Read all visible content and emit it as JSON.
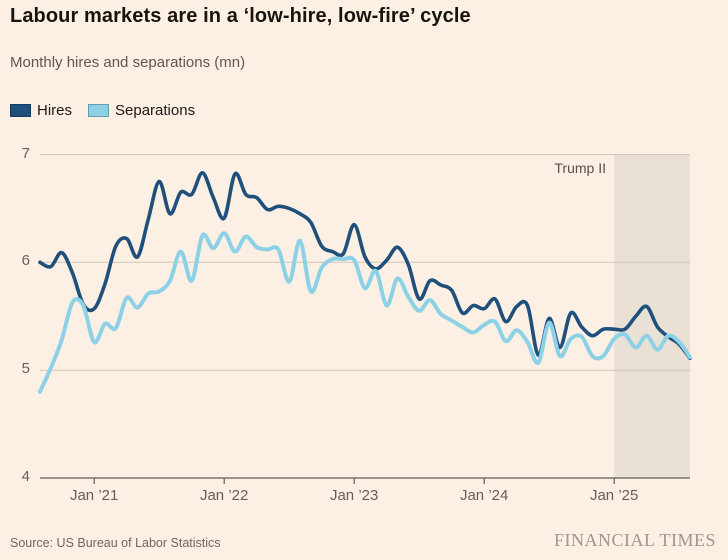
{
  "footer": {
    "source": "Source: US Bureau of Labor Statistics",
    "brand": "FINANCIAL TIMES"
  },
  "chart_data": {
    "type": "line",
    "title": "Labour markets are in a ‘low-hire, low-fire’ cycle",
    "subtitle": "Monthly hires and separations (mn)",
    "ylim": [
      4,
      7
    ],
    "yticks": [
      4,
      5,
      6,
      7
    ],
    "grid": "horizontal-only",
    "legend_position": "top-left",
    "x_tick_labels": [
      "Jan ’21",
      "Jan ’22",
      "Jan ’23",
      "Jan ’24",
      "Jan ’25"
    ],
    "x_tick_month_indices": [
      5,
      17,
      29,
      41,
      53
    ],
    "months": [
      "Aug ’20",
      "Sep ’20",
      "Oct ’20",
      "Nov ’20",
      "Dec ’20",
      "Jan ’21",
      "Feb ’21",
      "Mar ’21",
      "Apr ’21",
      "May ’21",
      "Jun ’21",
      "Jul ’21",
      "Aug ’21",
      "Sep ’21",
      "Oct ’21",
      "Nov ’21",
      "Dec ’21",
      "Jan ’22",
      "Feb ’22",
      "Mar ’22",
      "Apr ’22",
      "May ’22",
      "Jun ’22",
      "Jul ’22",
      "Aug ’22",
      "Sep ’22",
      "Oct ’22",
      "Nov ’22",
      "Dec ’22",
      "Jan ’23",
      "Feb ’23",
      "Mar ’23",
      "Apr ’23",
      "May ’23",
      "Jun ’23",
      "Jul ’23",
      "Aug ’23",
      "Sep ’23",
      "Oct ’23",
      "Nov ’23",
      "Dec ’23",
      "Jan ’24",
      "Feb ’24",
      "Mar ’24",
      "Apr ’24",
      "May ’24",
      "Jun ’24",
      "Jul ’24",
      "Aug ’24",
      "Sep ’24",
      "Oct ’24",
      "Nov ’24",
      "Dec ’24",
      "Jan ’25",
      "Feb ’25",
      "Mar ’25",
      "Apr ’25",
      "May ’25",
      "Jun ’25",
      "Jul ’25",
      "Aug ’25"
    ],
    "series": [
      {
        "name": "Hires",
        "color": "#1f4f7b",
        "stroke_width": 3.6,
        "values": [
          6.0,
          5.96,
          6.09,
          5.9,
          5.61,
          5.57,
          5.8,
          6.15,
          6.22,
          6.05,
          6.4,
          6.75,
          6.45,
          6.65,
          6.63,
          6.83,
          6.6,
          6.41,
          6.82,
          6.63,
          6.6,
          6.49,
          6.52,
          6.5,
          6.45,
          6.37,
          6.15,
          6.1,
          6.08,
          6.35,
          6.05,
          5.94,
          6.02,
          6.14,
          5.98,
          5.66,
          5.83,
          5.79,
          5.74,
          5.53,
          5.6,
          5.57,
          5.66,
          5.45,
          5.59,
          5.6,
          5.14,
          5.48,
          5.21,
          5.53,
          5.4,
          5.32,
          5.38,
          5.38,
          5.38,
          5.5,
          5.59,
          5.4,
          5.31,
          5.24,
          5.11
        ]
      },
      {
        "name": "Separations",
        "color": "#8dd1e7",
        "stroke_width": 4,
        "values": [
          4.8,
          5.02,
          5.28,
          5.63,
          5.6,
          5.26,
          5.43,
          5.39,
          5.67,
          5.58,
          5.71,
          5.73,
          5.83,
          6.1,
          5.83,
          6.25,
          6.13,
          6.27,
          6.1,
          6.24,
          6.14,
          6.12,
          6.12,
          5.82,
          6.2,
          5.73,
          5.95,
          6.03,
          6.03,
          6.02,
          5.76,
          5.92,
          5.6,
          5.85,
          5.68,
          5.55,
          5.65,
          5.52,
          5.46,
          5.4,
          5.35,
          5.42,
          5.45,
          5.27,
          5.37,
          5.26,
          5.07,
          5.44,
          5.13,
          5.29,
          5.31,
          5.13,
          5.13,
          5.29,
          5.33,
          5.21,
          5.32,
          5.19,
          5.32,
          5.26,
          5.12
        ]
      }
    ],
    "annotation": {
      "label": "Trump II",
      "start_month_index": 53
    },
    "colors": {
      "background": "#fcf0e4",
      "shade": "#e9e1d6",
      "grid": "#cfc5ba",
      "axis": "#615b54"
    }
  }
}
